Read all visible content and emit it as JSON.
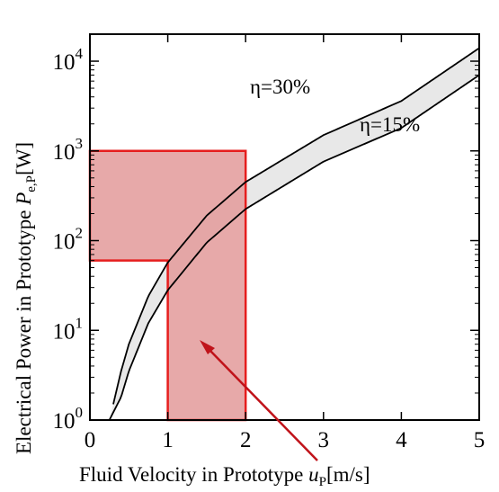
{
  "chart_data": {
    "type": "line",
    "xlabel": {
      "prefix": "Fluid Velocity in Prototype ",
      "var": "u",
      "sub": "P",
      "unit": "[m/s]"
    },
    "ylabel": {
      "prefix": "Electrical Power in Prototype ",
      "var": "P",
      "sub": "e,P",
      "unit": "[W]"
    },
    "xlim": [
      0,
      5
    ],
    "ylim": [
      1,
      20000
    ],
    "yscale": "log",
    "x_ticks": [
      "0",
      "1",
      "2",
      "3",
      "4",
      "5"
    ],
    "y_ticks": [
      {
        "base": "10",
        "exp": "0"
      },
      {
        "base": "10",
        "exp": "1"
      },
      {
        "base": "10",
        "exp": "2"
      },
      {
        "base": "10",
        "exp": "3"
      },
      {
        "base": "10",
        "exp": "4"
      }
    ],
    "series": [
      {
        "name": "η=30%",
        "x": [
          0.3,
          0.4,
          0.5,
          0.75,
          1.0,
          1.5,
          2.0,
          3.0,
          4.0,
          5.0
        ],
        "y": [
          1.5,
          3.5,
          7,
          24,
          57,
          190,
          450,
          1500,
          3600,
          14000
        ]
      },
      {
        "name": "η=15%",
        "x": [
          0.25,
          0.4,
          0.5,
          0.75,
          1.0,
          1.5,
          2.0,
          3.0,
          4.0,
          5.0
        ],
        "y": [
          1.0,
          1.8,
          3.5,
          12,
          28,
          95,
          225,
          760,
          1800,
          7000
        ]
      }
    ],
    "regions": {
      "rect1": {
        "x": [
          0,
          2
        ],
        "y": [
          60,
          1000
        ]
      },
      "rect2": {
        "x": [
          1,
          2
        ],
        "y": [
          1,
          60
        ]
      }
    },
    "colors": {
      "region_fill": "#e39a9a",
      "region_border": "#e61e1e",
      "band_fill": "#e8e8e8",
      "arrow": "#c0131a",
      "curve": "#000000"
    }
  }
}
